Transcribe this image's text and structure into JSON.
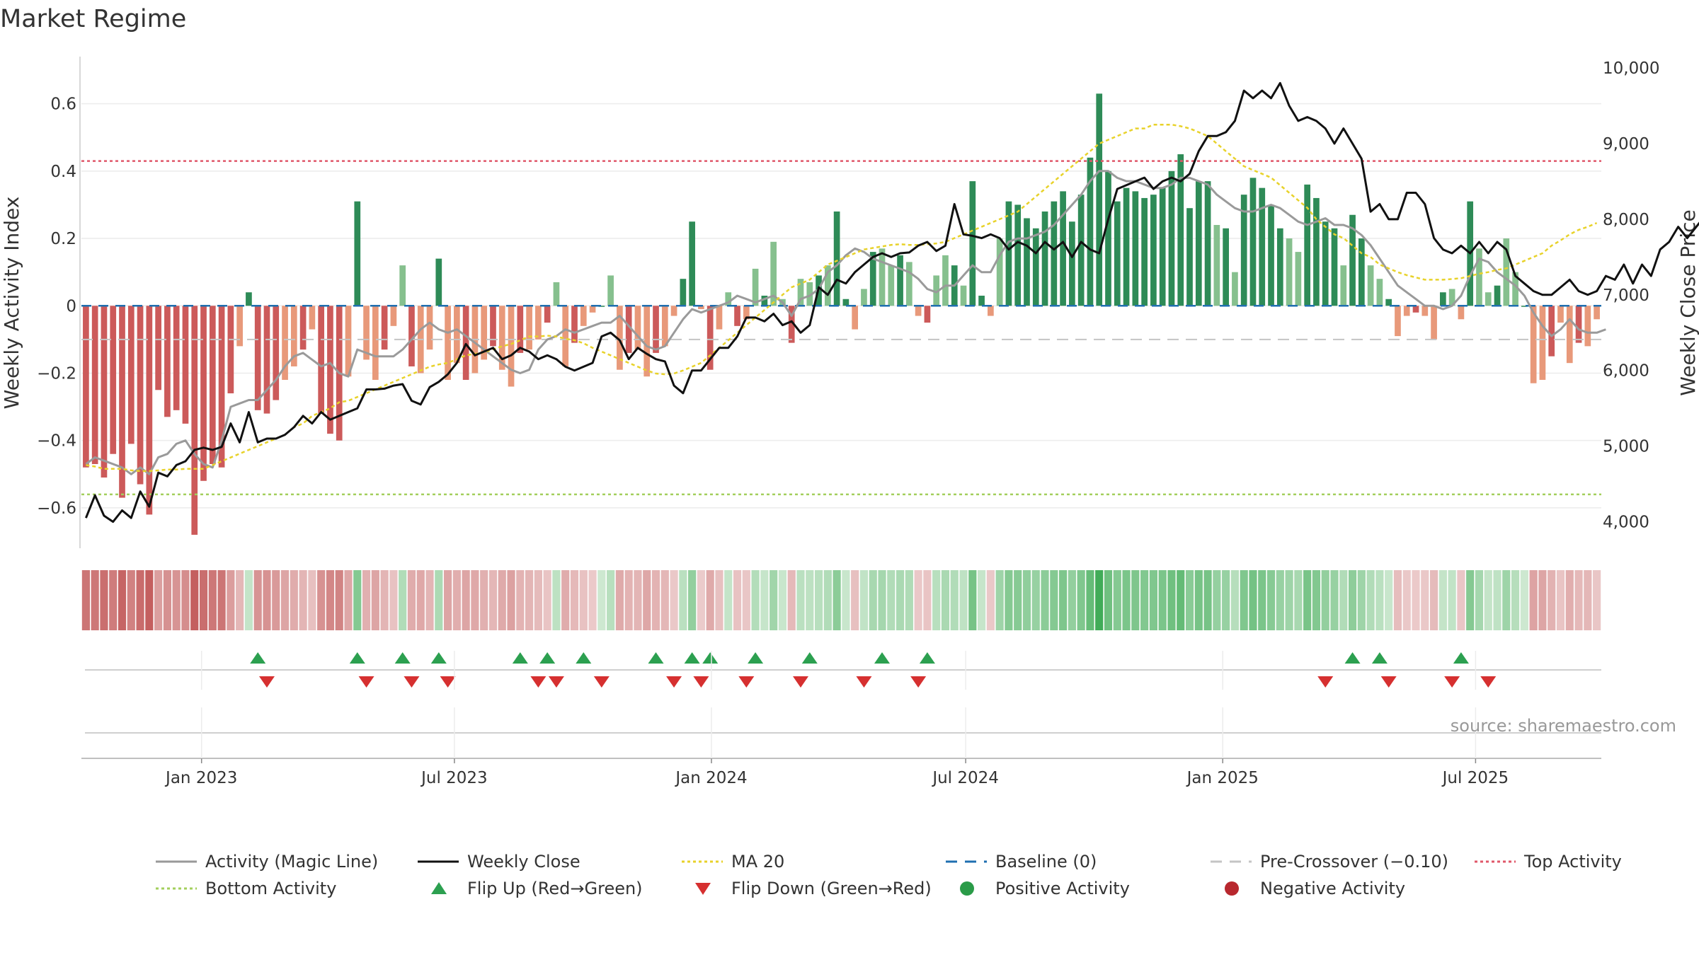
{
  "chart_data": {
    "type": "bar",
    "title": "Market Regime",
    "source": "source: sharemaestro.com",
    "ylabel_left": "Weekly Activity Index",
    "ylabel_right": "Weekly Close Price",
    "ylim_left": [
      -0.72,
      0.74
    ],
    "ylim_right": [
      3650,
      10150
    ],
    "yticks_left": [
      0.6,
      0.4,
      0.2,
      0,
      -0.2,
      -0.4,
      -0.6
    ],
    "yticks_left_labels": [
      "0.6",
      "0.4",
      "0.2",
      "0",
      "−0.2",
      "−0.4",
      "−0.6"
    ],
    "yticks_right": [
      10000,
      9000,
      8000,
      7000,
      6000,
      5000,
      4000
    ],
    "yticks_right_labels": [
      "10,000",
      "9,000",
      "8,000",
      "7,000",
      "6,000",
      "5,000",
      "4,000"
    ],
    "x_start": "2022-10-07",
    "x_end": "2025-09-29",
    "xticks": [
      "2023-01-01",
      "2023-07-01",
      "2024-01-01",
      "2024-07-01",
      "2025-01-01",
      "2025-07-01"
    ],
    "xtick_labels": [
      "Jan 2023",
      "Jul 2023",
      "Jan 2024",
      "Jul 2024",
      "Jan 2025",
      "Jul 2025"
    ],
    "reference_lines": {
      "top_activity": 0.43,
      "bottom_activity": -0.56,
      "pre_crossover": -0.1,
      "baseline": 0
    },
    "series": [
      {
        "name": "Weekly Activity Index",
        "kind": "bar",
        "values": [
          -0.48,
          -0.47,
          -0.51,
          -0.44,
          -0.57,
          -0.41,
          -0.53,
          -0.62,
          -0.25,
          -0.33,
          -0.31,
          -0.35,
          -0.68,
          -0.52,
          -0.47,
          -0.48,
          -0.26,
          -0.12,
          0.04,
          -0.31,
          -0.32,
          -0.28,
          -0.22,
          -0.18,
          -0.13,
          -0.07,
          -0.32,
          -0.38,
          -0.4,
          -0.21,
          0.31,
          -0.16,
          -0.22,
          -0.13,
          -0.06,
          0.12,
          -0.18,
          -0.2,
          -0.13,
          0.14,
          -0.22,
          -0.17,
          -0.22,
          -0.2,
          -0.16,
          -0.12,
          -0.19,
          -0.24,
          -0.14,
          -0.13,
          -0.1,
          -0.05,
          0.07,
          -0.18,
          -0.11,
          -0.06,
          -0.02,
          0.0,
          0.09,
          -0.19,
          -0.14,
          -0.13,
          -0.21,
          -0.14,
          -0.12,
          -0.03,
          0.08,
          0.25,
          -0.01,
          -0.19,
          -0.07,
          0.04,
          -0.06,
          -0.04,
          0.11,
          0.03,
          0.19,
          0.02,
          -0.11,
          0.08,
          0.07,
          0.09,
          0.12,
          0.28,
          0.02,
          -0.07,
          0.05,
          0.16,
          0.17,
          0.12,
          0.15,
          0.13,
          -0.03,
          -0.05,
          0.09,
          0.15,
          0.12,
          0.06,
          0.37,
          0.03,
          -0.03,
          0.2,
          0.31,
          0.3,
          0.26,
          0.23,
          0.28,
          0.31,
          0.34,
          0.25,
          0.33,
          0.44,
          0.63,
          0.4,
          0.31,
          0.35,
          0.34,
          0.32,
          0.33,
          0.35,
          0.4,
          0.45,
          0.29,
          0.37,
          0.37,
          0.24,
          0.23,
          0.1,
          0.33,
          0.38,
          0.35,
          0.3,
          0.23,
          0.2,
          0.16,
          0.36,
          0.32,
          0.25,
          0.23,
          0.12,
          0.27,
          0.2,
          0.12,
          0.08,
          0.02,
          -0.09,
          -0.03,
          -0.02,
          -0.03,
          -0.1,
          0.04,
          0.05,
          -0.04,
          0.31,
          0.17,
          0.04,
          0.06,
          0.2,
          0.1,
          0.0,
          -0.23,
          -0.22,
          -0.15,
          -0.05,
          -0.17,
          -0.11,
          -0.12,
          -0.04
        ]
      },
      {
        "name": "Activity (Magic Line)",
        "kind": "line",
        "axis": "left",
        "values": [
          -0.47,
          -0.45,
          -0.46,
          -0.47,
          -0.48,
          -0.5,
          -0.48,
          -0.5,
          -0.45,
          -0.44,
          -0.41,
          -0.4,
          -0.44,
          -0.47,
          -0.48,
          -0.4,
          -0.3,
          -0.29,
          -0.28,
          -0.28,
          -0.25,
          -0.22,
          -0.18,
          -0.15,
          -0.14,
          -0.16,
          -0.18,
          -0.17,
          -0.2,
          -0.21,
          -0.13,
          -0.14,
          -0.15,
          -0.15,
          -0.15,
          -0.13,
          -0.1,
          -0.07,
          -0.05,
          -0.07,
          -0.08,
          -0.07,
          -0.09,
          -0.11,
          -0.13,
          -0.15,
          -0.17,
          -0.19,
          -0.2,
          -0.19,
          -0.13,
          -0.1,
          -0.09,
          -0.07,
          -0.08,
          -0.07,
          -0.06,
          -0.05,
          -0.05,
          -0.03,
          -0.06,
          -0.09,
          -0.12,
          -0.13,
          -0.12,
          -0.08,
          -0.04,
          -0.01,
          -0.02,
          -0.01,
          0.0,
          0.01,
          0.03,
          0.02,
          0.01,
          0.02,
          0.03,
          0.01,
          -0.03,
          0.02,
          0.03,
          0.05,
          0.1,
          0.12,
          0.15,
          0.17,
          0.16,
          0.14,
          0.13,
          0.12,
          0.11,
          0.1,
          0.08,
          0.05,
          0.04,
          0.06,
          0.06,
          0.09,
          0.12,
          0.1,
          0.1,
          0.15,
          0.19,
          0.2,
          0.2,
          0.21,
          0.22,
          0.24,
          0.27,
          0.3,
          0.33,
          0.37,
          0.4,
          0.4,
          0.38,
          0.37,
          0.37,
          0.36,
          0.35,
          0.35,
          0.36,
          0.38,
          0.38,
          0.37,
          0.36,
          0.33,
          0.31,
          0.29,
          0.28,
          0.28,
          0.29,
          0.3,
          0.29,
          0.27,
          0.25,
          0.24,
          0.25,
          0.26,
          0.24,
          0.24,
          0.23,
          0.21,
          0.18,
          0.14,
          0.1,
          0.06,
          0.04,
          0.02,
          0.0,
          0.0,
          -0.01,
          0.0,
          0.03,
          0.09,
          0.14,
          0.13,
          0.1,
          0.08,
          0.06,
          0.03,
          -0.02,
          -0.06,
          -0.09,
          -0.07,
          -0.04,
          -0.07,
          -0.08,
          -0.08,
          -0.07
        ]
      },
      {
        "name": "Weekly Close",
        "kind": "line",
        "axis": "right",
        "values": [
          4050,
          4350,
          4080,
          4000,
          4150,
          4050,
          4400,
          4200,
          4650,
          4600,
          4750,
          4800,
          4950,
          4980,
          4950,
          4990,
          5300,
          5050,
          5450,
          5050,
          5100,
          5100,
          5150,
          5250,
          5400,
          5300,
          5450,
          5350,
          5400,
          5450,
          5500,
          5750,
          5750,
          5760,
          5800,
          5820,
          5600,
          5550,
          5780,
          5850,
          5950,
          6100,
          6350,
          6200,
          6250,
          6300,
          6150,
          6200,
          6300,
          6250,
          6150,
          6200,
          6150,
          6050,
          6000,
          6050,
          6100,
          6450,
          6500,
          6400,
          6150,
          6300,
          6220,
          6150,
          6120,
          5800,
          5700,
          6000,
          6000,
          6150,
          6300,
          6300,
          6450,
          6700,
          6700,
          6650,
          6750,
          6600,
          6650,
          6500,
          6600,
          7100,
          7000,
          7200,
          7150,
          7300,
          7400,
          7500,
          7550,
          7500,
          7550,
          7560,
          7650,
          7700,
          7580,
          7650,
          8200,
          7800,
          7780,
          7750,
          7800,
          7750,
          7600,
          7700,
          7650,
          7550,
          7700,
          7600,
          7700,
          7500,
          7700,
          7600,
          7550,
          8000,
          8400,
          8450,
          8500,
          8550,
          8400,
          8500,
          8550,
          8500,
          8600,
          8900,
          9100,
          9100,
          9150,
          9300,
          9700,
          9600,
          9700,
          9600,
          9800,
          9500,
          9300,
          9350,
          9300,
          9200,
          9000,
          9200,
          9000,
          8800,
          8100,
          8200,
          8000,
          8000,
          8350,
          8350,
          8200,
          7750,
          7600,
          7550,
          7650,
          7550,
          7700,
          7550,
          7700,
          7600,
          7250,
          7150,
          7050,
          7000,
          7000,
          7100,
          7200,
          7050,
          7000,
          7050,
          7250,
          7200,
          7400,
          7150,
          7400,
          7250,
          7600,
          7700,
          7900,
          7750,
          7900,
          8050,
          8100,
          8300,
          8100,
          8150,
          8450,
          8350
        ]
      },
      {
        "name": "MA 20",
        "kind": "line",
        "axis": "right",
        "values": [
          4750,
          4730,
          4700,
          4700,
          4700,
          4680,
          4670,
          4670,
          4680,
          4690,
          4690,
          4700,
          4700,
          4700,
          4750,
          4800,
          4850,
          4900,
          4950,
          5000,
          5050,
          5100,
          5150,
          5250,
          5300,
          5400,
          5450,
          5500,
          5580,
          5600,
          5650,
          5700,
          5750,
          5800,
          5850,
          5900,
          5950,
          6000,
          6050,
          6080,
          6100,
          6150,
          6200,
          6220,
          6240,
          6280,
          6320,
          6350,
          6400,
          6450,
          6450,
          6460,
          6450,
          6420,
          6400,
          6360,
          6300,
          6250,
          6200,
          6150,
          6100,
          6050,
          6000,
          5960,
          5950,
          5960,
          6000,
          6050,
          6100,
          6200,
          6300,
          6400,
          6500,
          6600,
          6700,
          6800,
          6900,
          7000,
          7100,
          7150,
          7200,
          7300,
          7400,
          7450,
          7500,
          7550,
          7600,
          7620,
          7640,
          7660,
          7670,
          7660,
          7660,
          7670,
          7680,
          7700,
          7750,
          7800,
          7850,
          7900,
          7950,
          8000,
          8050,
          8100,
          8200,
          8300,
          8400,
          8500,
          8600,
          8700,
          8800,
          8900,
          9000,
          9050,
          9100,
          9150,
          9200,
          9200,
          9250,
          9250,
          9250,
          9230,
          9200,
          9150,
          9100,
          9000,
          8900,
          8800,
          8700,
          8650,
          8600,
          8550,
          8450,
          8350,
          8250,
          8150,
          8000,
          7900,
          7800,
          7750,
          7650,
          7550,
          7500,
          7400,
          7350,
          7300,
          7260,
          7230,
          7200,
          7200,
          7200,
          7210,
          7220,
          7250,
          7280,
          7300,
          7330,
          7350,
          7400,
          7450,
          7500,
          7550,
          7650,
          7720,
          7800,
          7860,
          7900,
          7950
        ]
      }
    ],
    "regime_strip": {
      "label": "Regime strip",
      "values": [
        -0.48,
        -0.47,
        -0.51,
        -0.44,
        -0.57,
        -0.41,
        -0.53,
        -0.62,
        -0.25,
        -0.33,
        -0.31,
        -0.35,
        -0.68,
        -0.52,
        -0.47,
        -0.48,
        -0.26,
        -0.12,
        0.04,
        -0.31,
        -0.32,
        -0.28,
        -0.22,
        -0.18,
        -0.13,
        -0.07,
        -0.32,
        -0.38,
        -0.4,
        -0.21,
        0.31,
        -0.16,
        -0.22,
        -0.13,
        -0.06,
        0.12,
        -0.18,
        -0.2,
        -0.13,
        0.14,
        -0.22,
        -0.17,
        -0.22,
        -0.2,
        -0.16,
        -0.12,
        -0.19,
        -0.24,
        -0.14,
        -0.13,
        -0.1,
        -0.05,
        0.07,
        -0.18,
        -0.11,
        -0.06,
        -0.02,
        0.0,
        0.09,
        -0.19,
        -0.14,
        -0.13,
        -0.21,
        -0.14,
        -0.12,
        -0.03,
        0.08,
        0.25,
        -0.01,
        -0.19,
        -0.07,
        0.04,
        -0.06,
        -0.04,
        0.11,
        0.03,
        0.19,
        0.02,
        -0.11,
        0.08,
        0.07,
        0.09,
        0.12,
        0.28,
        0.02,
        -0.07,
        0.05,
        0.16,
        0.17,
        0.12,
        0.15,
        0.13,
        -0.03,
        -0.05,
        0.09,
        0.15,
        0.12,
        0.06,
        0.37,
        0.03,
        -0.03,
        0.2,
        0.31,
        0.3,
        0.26,
        0.23,
        0.28,
        0.31,
        0.34,
        0.25,
        0.33,
        0.44,
        0.63,
        0.4,
        0.31,
        0.35,
        0.34,
        0.32,
        0.33,
        0.35,
        0.4,
        0.45,
        0.29,
        0.37,
        0.37,
        0.24,
        0.23,
        0.1,
        0.33,
        0.38,
        0.35,
        0.3,
        0.23,
        0.2,
        0.16,
        0.36,
        0.32,
        0.25,
        0.23,
        0.12,
        0.27,
        0.2,
        0.12,
        0.08,
        0.02,
        -0.09,
        -0.03,
        -0.02,
        -0.03,
        -0.1,
        0.04,
        0.05,
        -0.04,
        0.31,
        0.17,
        0.04,
        0.06,
        0.2,
        0.1,
        0.0,
        -0.23,
        -0.22,
        -0.15,
        -0.05,
        -0.17,
        -0.11,
        -0.12,
        -0.04
      ]
    },
    "flip_up_weeks": [
      19,
      30,
      35,
      39,
      48,
      51,
      55,
      63,
      67,
      69,
      74,
      80,
      88,
      93,
      140,
      143,
      152
    ],
    "flip_down_weeks": [
      20,
      31,
      36,
      40,
      50,
      52,
      57,
      65,
      68,
      73,
      79,
      86,
      92,
      137,
      144,
      151,
      155
    ],
    "legend": [
      {
        "label": "Activity (Magic Line)",
        "symbol": "line",
        "color": "#999999"
      },
      {
        "label": "Weekly Close",
        "symbol": "line",
        "color": "#111111"
      },
      {
        "label": "MA 20",
        "symbol": "dotted",
        "color": "#e8d22a"
      },
      {
        "label": "Baseline (0)",
        "symbol": "dashed",
        "color": "#1f6fb0"
      },
      {
        "label": "Pre-Crossover (−0.10)",
        "symbol": "dashed",
        "color": "#c4c4c4"
      },
      {
        "label": "Top Activity",
        "symbol": "dotted",
        "color": "#e0586a"
      },
      {
        "label": "Bottom Activity",
        "symbol": "dotted",
        "color": "#a3cf5c"
      },
      {
        "label": "Flip Up (Red→Green)",
        "symbol": "triangle-up",
        "color": "#2ca050"
      },
      {
        "label": "Flip Down (Green→Red)",
        "symbol": "triangle-down",
        "color": "#d63030"
      },
      {
        "label": "Positive Activity",
        "symbol": "circle",
        "color": "#2a9b48"
      },
      {
        "label": "Negative Activity",
        "symbol": "circle",
        "color": "#b8282e"
      }
    ],
    "colors": {
      "pos_strong": "#2e8b57",
      "pos_weak": "#86c08e",
      "neg_strong": "#cc5a5a",
      "neg_weak": "#e8997a"
    }
  }
}
